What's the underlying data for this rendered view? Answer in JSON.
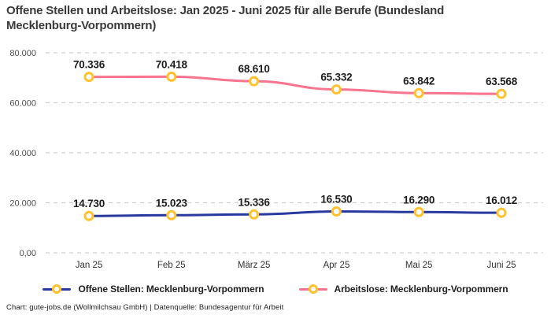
{
  "title": {
    "line1": "Offene Stellen und Arbeitslose: Jan 2025 - Juni 2025 für alle Berufe (Bundesland",
    "line2": "Mecklenburg-Vorpommern)"
  },
  "footer": "Chart: gute-jobs.de (Wollmilchsau GmbH) | Datenquelle: Bundesagentur für Arbeit",
  "colors": {
    "open_positions": "#283a9f",
    "unemployed": "#f8748f",
    "marker_ring": "#ffc12e",
    "grid": "#d0d0d0",
    "data_label": "#1d1d1d",
    "y_tick": "#4d4d4d",
    "x_tick": "#333333"
  },
  "chart_data": {
    "type": "line",
    "title": "Offene Stellen und Arbeitslose: Jan 2025 - Juni 2025 für alle Berufe (Bundesland Mecklenburg-Vorpommern)",
    "categories": [
      "Jan 25",
      "Feb 25",
      "März 25",
      "Apr 25",
      "Mai 25",
      "Juni 25"
    ],
    "series": [
      {
        "name": "Offene Stellen: Mecklenburg-Vorpommern",
        "color": "#283a9f",
        "values": [
          14730,
          15023,
          15336,
          16530,
          16290,
          16012
        ],
        "value_labels": [
          "14.730",
          "15.023",
          "15.336",
          "16.530",
          "16.290",
          "16.012"
        ]
      },
      {
        "name": "Arbeitslose: Mecklenburg-Vorpommern",
        "color": "#f8748f",
        "values": [
          70336,
          70418,
          68610,
          65332,
          63842,
          63568
        ],
        "value_labels": [
          "70.336",
          "70.418",
          "68.610",
          "65.332",
          "63.842",
          "63.568"
        ]
      }
    ],
    "xlabel": "",
    "ylabel": "",
    "ylim": [
      0,
      80000
    ],
    "yticks": {
      "values": [
        0,
        20000,
        40000,
        60000,
        80000
      ],
      "labels": [
        "0,00",
        "20.000",
        "40.000",
        "60.000",
        "80.000"
      ]
    },
    "grid": "horizontal-dashed",
    "legend_position": "bottom",
    "marker": "yellow-ring"
  },
  "legend": {
    "items": [
      {
        "label": "Offene Stellen: Mecklenburg-Vorpommern",
        "color": "#283a9f"
      },
      {
        "label": "Arbeitslose: Mecklenburg-Vorpommern",
        "color": "#f8748f"
      }
    ]
  }
}
